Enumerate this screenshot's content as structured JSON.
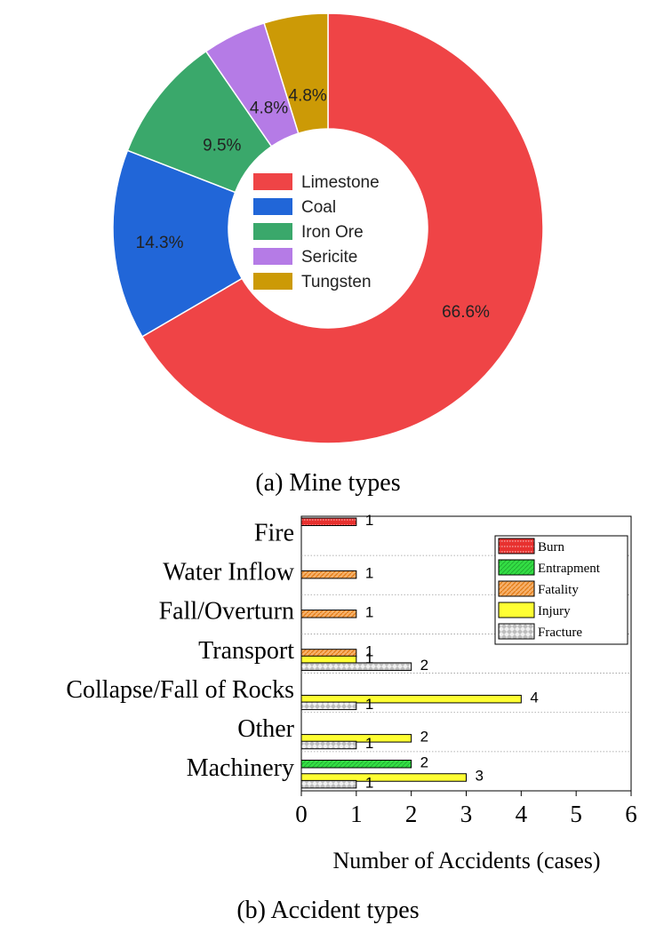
{
  "chart_data": [
    {
      "type": "pie",
      "style": "donut",
      "caption": "(a) Mine types",
      "slices": [
        {
          "label": "Limestone",
          "value": 66.6,
          "value_label": "66.6%",
          "color": "#ef4446"
        },
        {
          "label": "Coal",
          "value": 14.3,
          "value_label": "14.3%",
          "color": "#2166d8"
        },
        {
          "label": "Iron Ore",
          "value": 9.5,
          "value_label": "9.5%",
          "color": "#3aa86b"
        },
        {
          "label": "Sericite",
          "value": 4.8,
          "value_label": "4.8%",
          "color": "#b57be6"
        },
        {
          "label": "Tungsten",
          "value": 4.8,
          "value_label": "4.8%",
          "color": "#cc9a06"
        }
      ],
      "legend_position": "center"
    },
    {
      "type": "bar",
      "orientation": "horizontal",
      "caption": "(b) Accident types",
      "xlabel": "Number of Accidents (cases)",
      "xlim": [
        0,
        6
      ],
      "x_ticks": [
        "0",
        "1",
        "2",
        "3",
        "4",
        "5",
        "6"
      ],
      "categories": [
        "Fire",
        "Water Inflow",
        "Fall/Overturn",
        "Transport",
        "Collapse/Fall of Rocks",
        "Other",
        "Machinery"
      ],
      "series": [
        {
          "name": "Burn",
          "color": "#e8312f",
          "values": [
            1,
            0,
            0,
            0,
            0,
            0,
            0
          ]
        },
        {
          "name": "Entrapment",
          "color": "#33dd44",
          "values": [
            0,
            0,
            0,
            0,
            0,
            0,
            2
          ]
        },
        {
          "name": "Fatality",
          "color": "#f39a3c",
          "values": [
            0,
            1,
            1,
            1,
            0,
            0,
            0
          ]
        },
        {
          "name": "Injury",
          "color": "#ffff33",
          "values": [
            0,
            0,
            0,
            1,
            4,
            2,
            3
          ]
        },
        {
          "name": "Fracture",
          "color": "#d9d9d9",
          "values": [
            0,
            0,
            0,
            2,
            1,
            1,
            1
          ]
        }
      ],
      "legend_position": "top-right",
      "grid": "dotted horizontal separators"
    }
  ]
}
